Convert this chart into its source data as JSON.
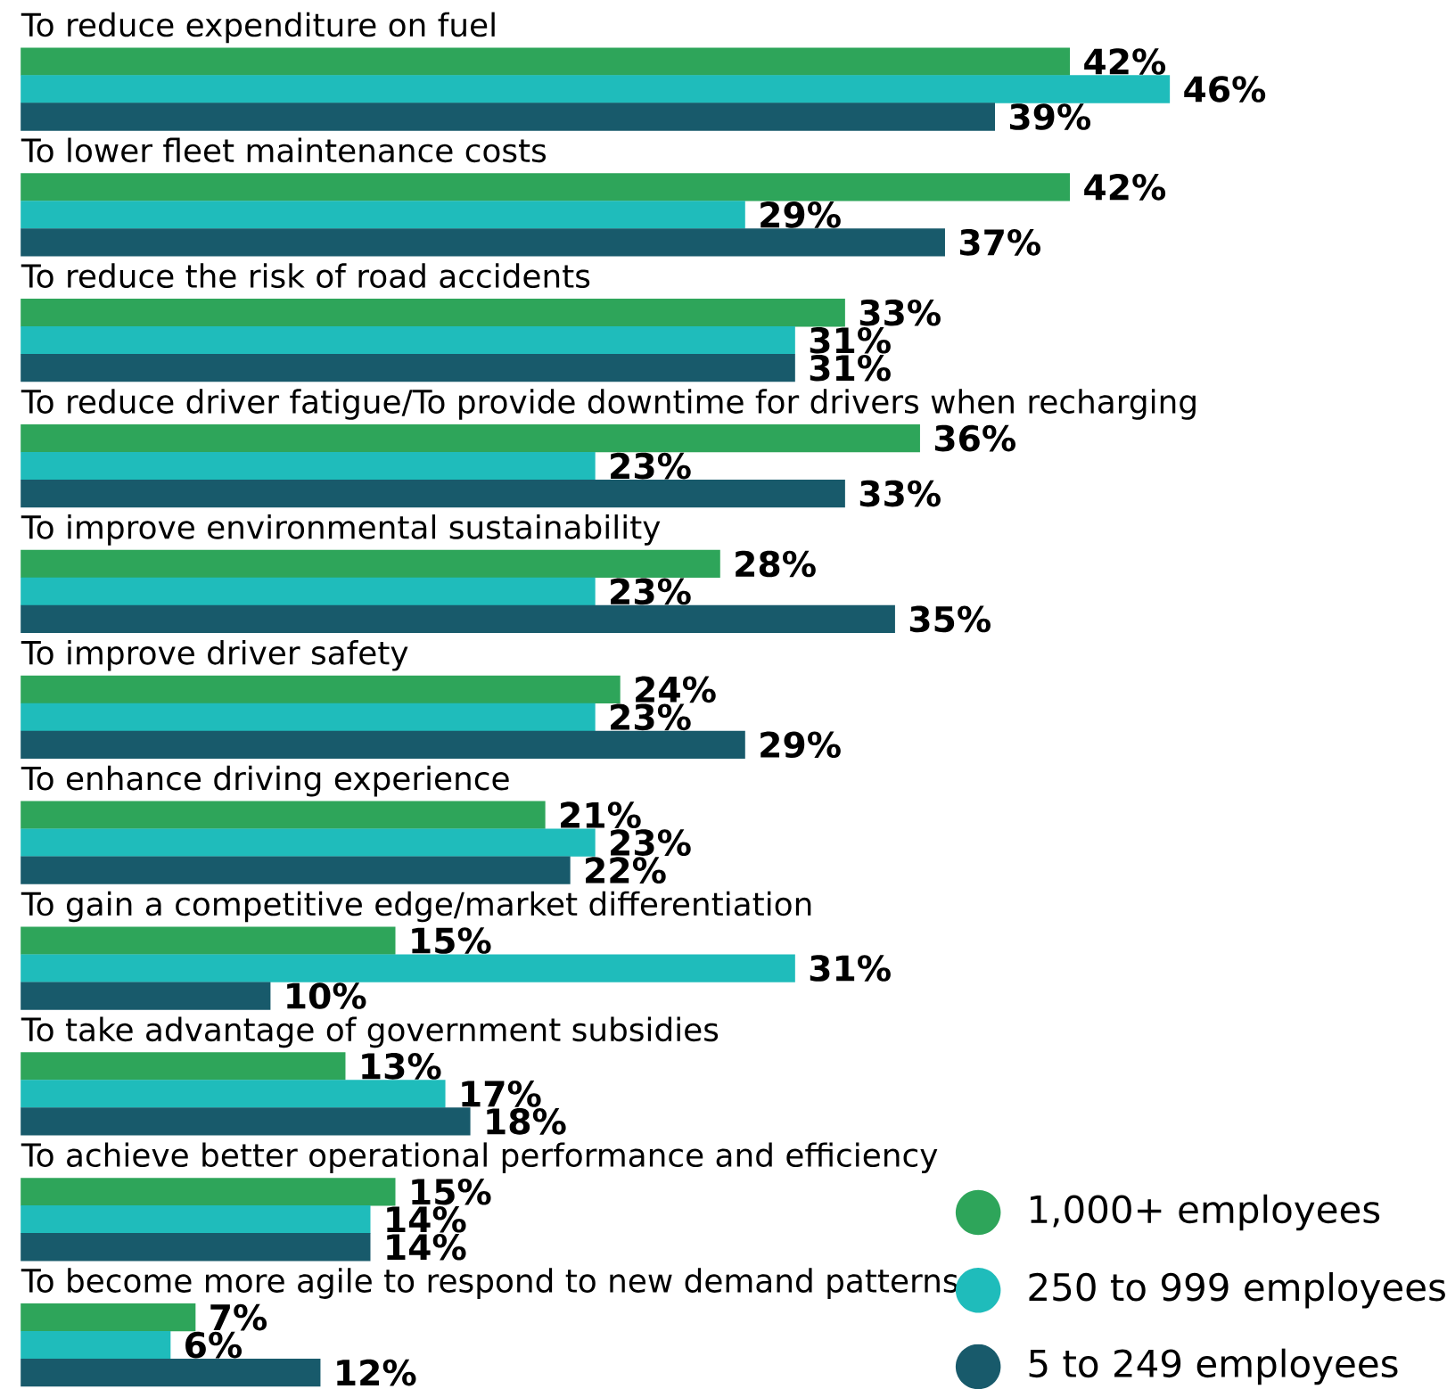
{
  "chart_data": {
    "type": "bar",
    "orientation": "horizontal",
    "legend": "bottom right",
    "categories": [
      "To reduce expenditure on fuel",
      "To lower fleet maintenance costs",
      "To reduce the risk of road accidents",
      "To reduce driver fatigue/To provide downtime for drivers when recharging",
      "To improve environmental sustainability",
      "To improve driver safety",
      "To enhance driving experience",
      "To gain a competitive edge/market differentiation",
      "To take advantage of government subsidies",
      "To achieve better operational performance and efficiency",
      "To become more agile to respond to new demand patterns"
    ],
    "series": [
      {
        "name": "1,000+ employees",
        "color": "#2ea55a",
        "values": [
          42,
          42,
          33,
          36,
          28,
          24,
          21,
          15,
          13,
          15,
          7
        ],
        "value_labels": [
          "42%",
          "42%",
          "33%",
          "36%",
          "28%",
          "24%",
          "21%",
          "15%",
          "13%",
          "15%",
          "7%"
        ]
      },
      {
        "name": "250 to 999 employees",
        "color": "#1fbcbb",
        "values": [
          46,
          29,
          31,
          23,
          23,
          23,
          23,
          31,
          17,
          14,
          6
        ],
        "value_labels": [
          "46%",
          "29%",
          "31%",
          "23%",
          "23%",
          "23%",
          "23%",
          "31%",
          "17%",
          "14%",
          "6%"
        ]
      },
      {
        "name": "5 to 249 employees",
        "color": "#185a6b",
        "values": [
          39,
          37,
          31,
          33,
          35,
          29,
          22,
          10,
          18,
          14,
          12
        ],
        "value_labels": [
          "39%",
          "37%",
          "31%",
          "33%",
          "35%",
          "29%",
          "22%",
          "10%",
          "18%",
          "14%",
          "12%"
        ]
      }
    ]
  }
}
